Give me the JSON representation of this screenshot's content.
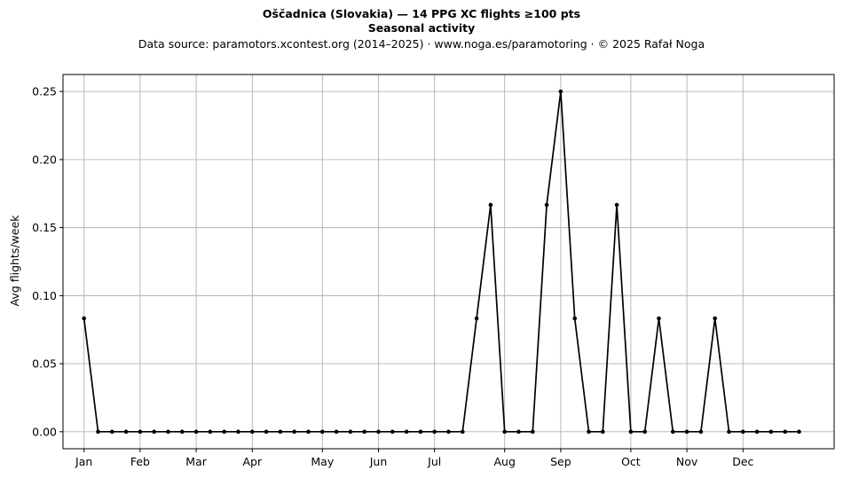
{
  "figure": {
    "title": "Oščadnica (Slovakia)  —  14 PPG XC flights ≥100 pts",
    "subtitle": "Seasonal activity",
    "source": "Data source: paramotors.xcontest.org (2014–2025)  ·  www.noga.es/paramotoring  ·  © 2025 Rafał Noga"
  },
  "chart_data": {
    "type": "line",
    "title": "Oščadnica (Slovakia)  —  14 PPG XC flights ≥100 pts",
    "subtitle": "Seasonal activity",
    "xlabel": "",
    "ylabel": "Avg flights/week",
    "x_unit": "week of year",
    "xlim": [
      -1.5,
      53.5
    ],
    "ylim": [
      -0.0125,
      0.2625
    ],
    "yticks": [
      0.0,
      0.05,
      0.1,
      0.15,
      0.2,
      0.25
    ],
    "ytick_labels": [
      "0.00",
      "0.05",
      "0.10",
      "0.15",
      "0.20",
      "0.25"
    ],
    "xticks": [
      0,
      4,
      8,
      12,
      17,
      21,
      25,
      30,
      34,
      39,
      43,
      47
    ],
    "xtick_labels": [
      "Jan",
      "Feb",
      "Mar",
      "Apr",
      "May",
      "Jun",
      "Jul",
      "Aug",
      "Sep",
      "Oct",
      "Nov",
      "Dec"
    ],
    "grid": true,
    "line_color": "#000000",
    "x": [
      0,
      1,
      2,
      3,
      4,
      5,
      6,
      7,
      8,
      9,
      10,
      11,
      12,
      13,
      14,
      15,
      16,
      17,
      18,
      19,
      20,
      21,
      22,
      23,
      24,
      25,
      26,
      27,
      28,
      29,
      30,
      31,
      32,
      33,
      34,
      35,
      36,
      37,
      38,
      39,
      40,
      41,
      42,
      43,
      44,
      45,
      46,
      47,
      48,
      49,
      50,
      51
    ],
    "y": [
      0.0833,
      0,
      0,
      0,
      0,
      0,
      0,
      0,
      0,
      0,
      0,
      0,
      0,
      0,
      0,
      0,
      0,
      0,
      0,
      0,
      0,
      0,
      0,
      0,
      0,
      0,
      0,
      0,
      0.0833,
      0.1667,
      0,
      0,
      0,
      0.1667,
      0.25,
      0.0833,
      0,
      0,
      0.1667,
      0,
      0,
      0.0833,
      0,
      0,
      0,
      0.0833,
      0,
      0,
      0,
      0,
      0,
      0
    ]
  }
}
